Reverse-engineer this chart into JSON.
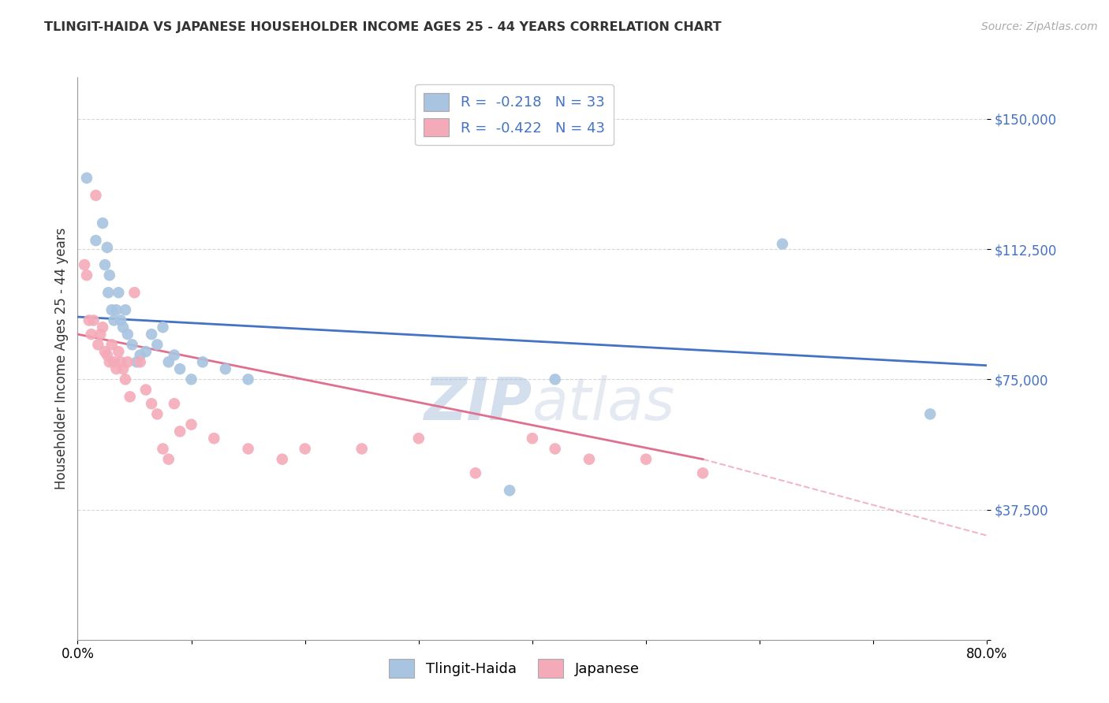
{
  "title": "TLINGIT-HAIDA VS JAPANESE HOUSEHOLDER INCOME AGES 25 - 44 YEARS CORRELATION CHART",
  "source": "Source: ZipAtlas.com",
  "ylabel": "Householder Income Ages 25 - 44 years",
  "xlim": [
    0.0,
    0.8
  ],
  "ylim": [
    0,
    162000
  ],
  "yticks": [
    0,
    37500,
    75000,
    112500,
    150000
  ],
  "ytick_labels": [
    "",
    "$37,500",
    "$75,000",
    "$112,500",
    "$150,000"
  ],
  "grid_color": "#cccccc",
  "background_color": "#ffffff",
  "blue_color": "#a8c4e0",
  "blue_line_color": "#4472c4",
  "pink_color": "#f4aab8",
  "pink_line_color": "#e07090",
  "legend_R1": "-0.218",
  "legend_N1": "33",
  "legend_R2": "-0.422",
  "legend_N2": "43",
  "label1": "Tlingit-Haida",
  "label2": "Japanese",
  "blue_line_x0": 0.0,
  "blue_line_y0": 93000,
  "blue_line_x1": 0.8,
  "blue_line_y1": 79000,
  "pink_line_x0": 0.0,
  "pink_line_y0": 88000,
  "pink_line_solid_x1": 0.55,
  "pink_line_solid_y1": 52000,
  "pink_line_dash_x1": 0.8,
  "pink_line_dash_y1": 30000,
  "tlingit_x": [
    0.008,
    0.016,
    0.022,
    0.024,
    0.026,
    0.027,
    0.028,
    0.03,
    0.032,
    0.034,
    0.036,
    0.038,
    0.04,
    0.042,
    0.044,
    0.048,
    0.052,
    0.055,
    0.06,
    0.065,
    0.07,
    0.075,
    0.08,
    0.085,
    0.09,
    0.1,
    0.11,
    0.13,
    0.15,
    0.38,
    0.42,
    0.62,
    0.75
  ],
  "tlingit_y": [
    133000,
    115000,
    120000,
    108000,
    113000,
    100000,
    105000,
    95000,
    92000,
    95000,
    100000,
    92000,
    90000,
    95000,
    88000,
    85000,
    80000,
    82000,
    83000,
    88000,
    85000,
    90000,
    80000,
    82000,
    78000,
    75000,
    80000,
    78000,
    75000,
    43000,
    75000,
    114000,
    65000
  ],
  "japanese_x": [
    0.006,
    0.008,
    0.01,
    0.012,
    0.014,
    0.016,
    0.018,
    0.02,
    0.022,
    0.024,
    0.026,
    0.028,
    0.03,
    0.032,
    0.034,
    0.036,
    0.038,
    0.04,
    0.042,
    0.044,
    0.046,
    0.05,
    0.055,
    0.06,
    0.065,
    0.07,
    0.075,
    0.08,
    0.085,
    0.09,
    0.1,
    0.12,
    0.15,
    0.18,
    0.2,
    0.25,
    0.3,
    0.35,
    0.4,
    0.42,
    0.45,
    0.5,
    0.55
  ],
  "japanese_y": [
    108000,
    105000,
    92000,
    88000,
    92000,
    128000,
    85000,
    88000,
    90000,
    83000,
    82000,
    80000,
    85000,
    80000,
    78000,
    83000,
    80000,
    78000,
    75000,
    80000,
    70000,
    100000,
    80000,
    72000,
    68000,
    65000,
    55000,
    52000,
    68000,
    60000,
    62000,
    58000,
    55000,
    52000,
    55000,
    55000,
    58000,
    48000,
    58000,
    55000,
    52000,
    52000,
    48000
  ]
}
